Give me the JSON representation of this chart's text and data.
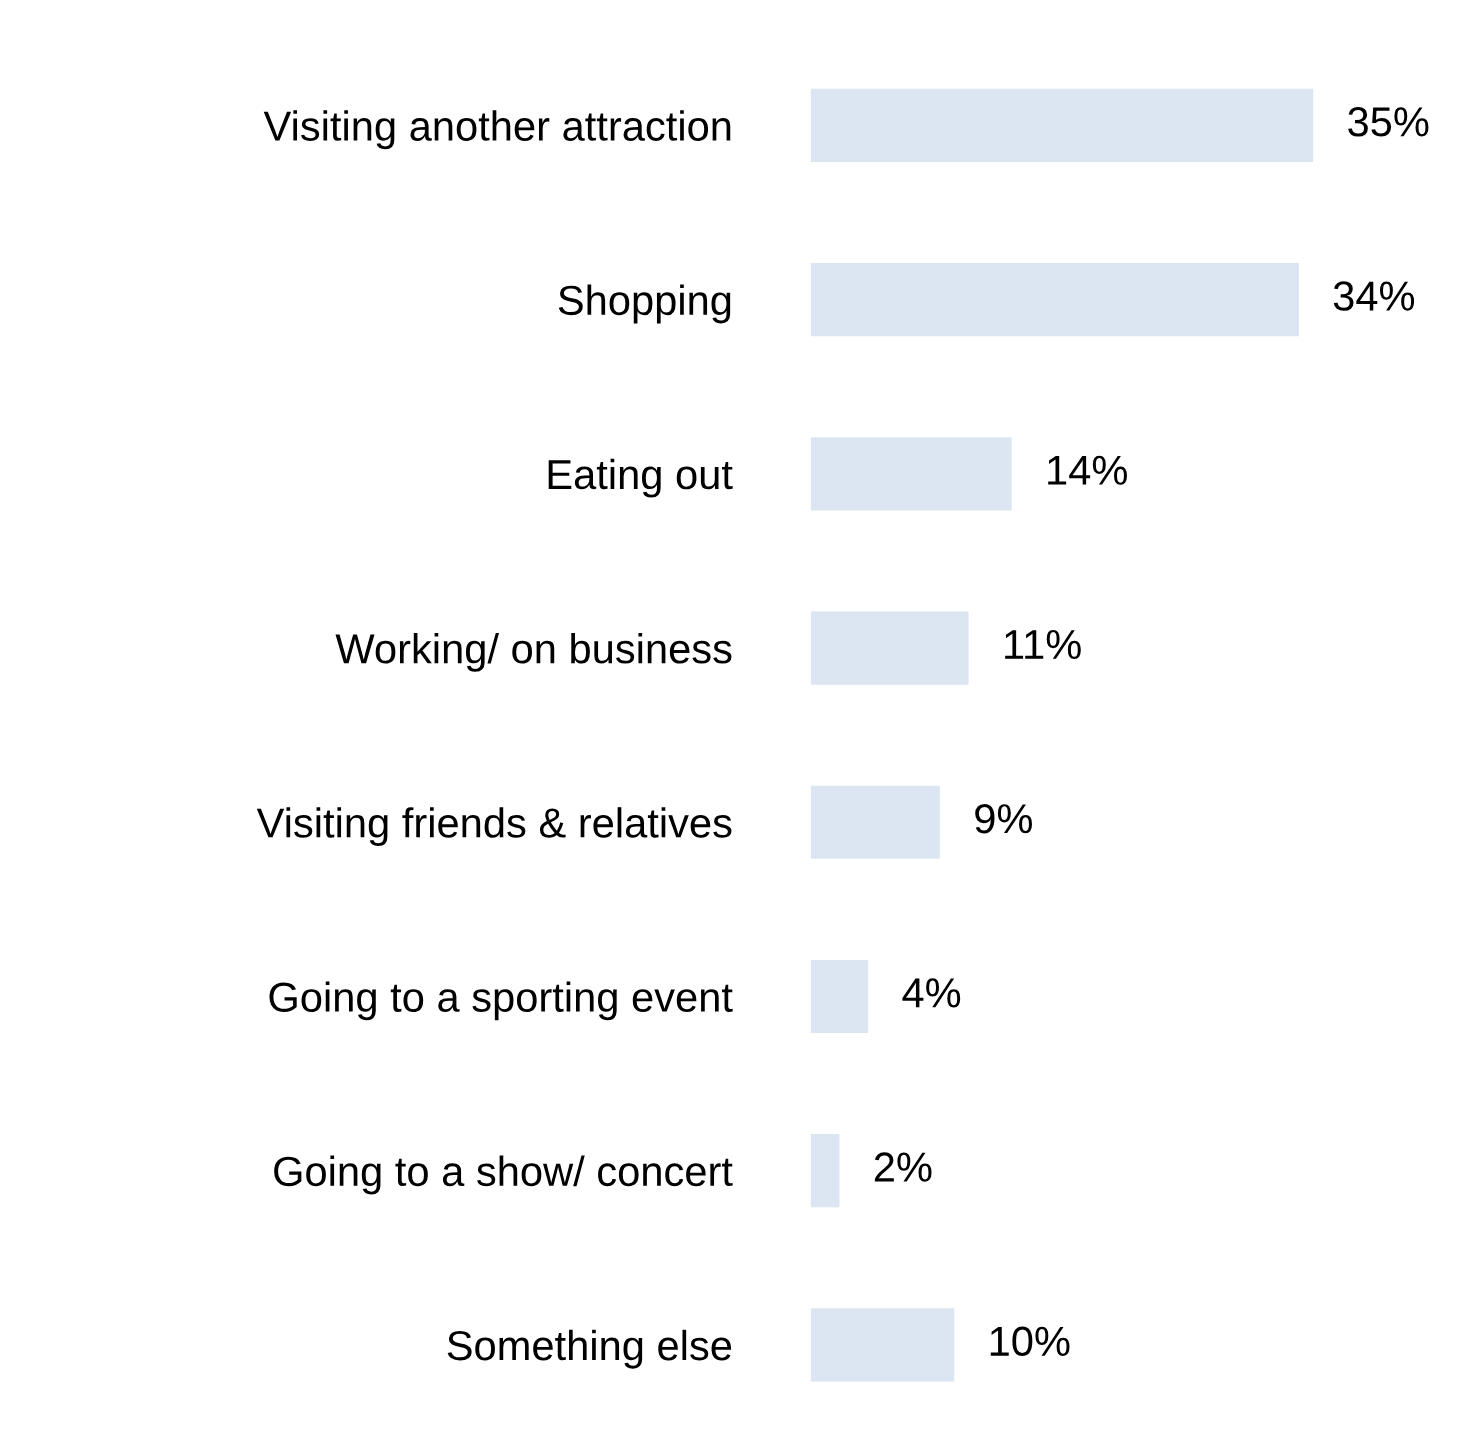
{
  "chart_data": {
    "type": "bar",
    "orientation": "horizontal",
    "categories": [
      "Visiting another attraction",
      "Shopping",
      "Eating out",
      "Working/ on business",
      "Visiting friends & relatives",
      "Going to a sporting event",
      "Going to a show/ concert",
      "Something else"
    ],
    "values": [
      35,
      34,
      14,
      11,
      9,
      4,
      2,
      10
    ],
    "color": "#dce6f2",
    "value_labels": [
      "35%",
      "34%",
      "14%",
      "11%",
      "9%",
      "4%",
      "2%",
      "10%"
    ],
    "grid": false,
    "legend": false,
    "tick_labels": "y"
  }
}
